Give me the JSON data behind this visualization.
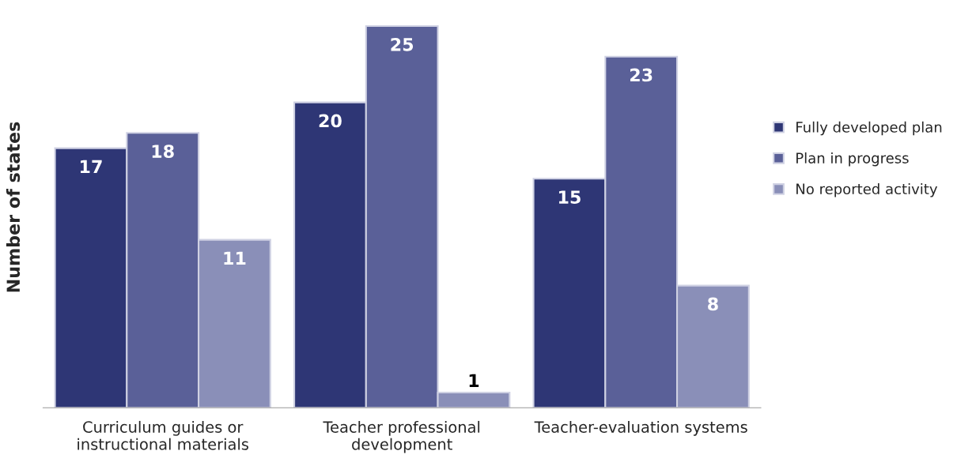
{
  "chart_data": {
    "type": "bar",
    "ylabel": "Number of states",
    "categories": [
      "Curriculum guides or\ninstructional materials",
      "Teacher professional\ndevelopment",
      "Teacher-evaluation systems"
    ],
    "series": [
      {
        "name": "Fully developed plan",
        "color": "#2e3675",
        "values": [
          17,
          20,
          15
        ]
      },
      {
        "name": "Plan in progress",
        "color": "#5a6098",
        "values": [
          18,
          25,
          23
        ]
      },
      {
        "name": "No reported activity",
        "color": "#8a8fb8",
        "values": [
          11,
          1,
          8
        ]
      }
    ],
    "data_labels": true,
    "legend": "right",
    "grid": false
  }
}
